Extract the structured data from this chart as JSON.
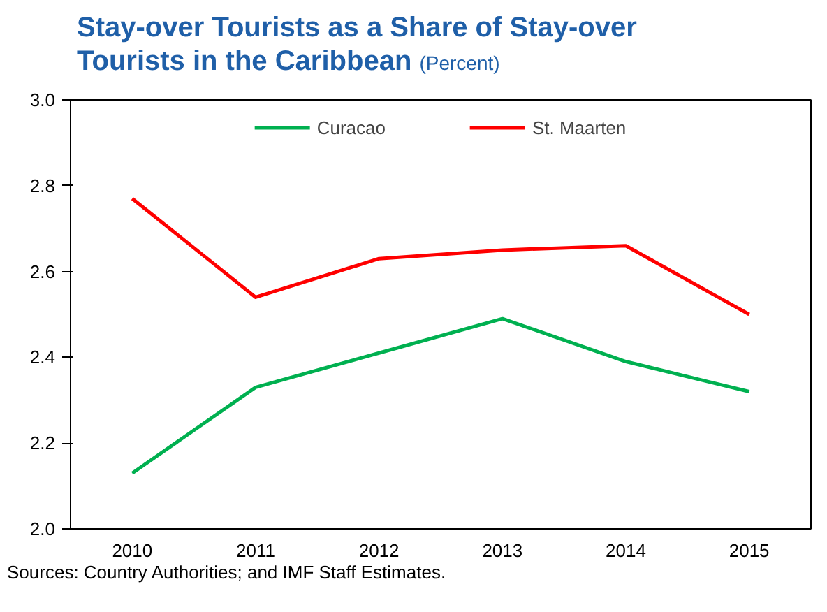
{
  "chart_data": {
    "type": "line",
    "title": "Stay-over Tourists as a Share of Stay-over Tourists in the Caribbean",
    "subtitle": "(Percent)",
    "categories": [
      "2010",
      "2011",
      "2012",
      "2013",
      "2014",
      "2015"
    ],
    "series": [
      {
        "name": "Curacao",
        "color": "#00b050",
        "values": [
          2.13,
          2.33,
          2.41,
          2.49,
          2.39,
          2.32
        ]
      },
      {
        "name": "St. Maarten",
        "color": "#ff0000",
        "values": [
          2.77,
          2.54,
          2.63,
          2.65,
          2.66,
          2.5
        ]
      }
    ],
    "ylim": [
      2.0,
      3.0
    ],
    "yticks": [
      {
        "value": 2.0,
        "label": "2.0"
      },
      {
        "value": 2.2,
        "label": "2.2"
      },
      {
        "value": 2.4,
        "label": "2.4"
      },
      {
        "value": 2.6,
        "label": "2.6"
      },
      {
        "value": 2.8,
        "label": "2.8"
      },
      {
        "value": 3.0,
        "label": "3.0"
      }
    ],
    "legend": "top",
    "grid": false,
    "marker": "none",
    "line_style": "solid",
    "annotations": [
      "Sources: Country Authorities; and IMF Staff Estimates."
    ]
  }
}
